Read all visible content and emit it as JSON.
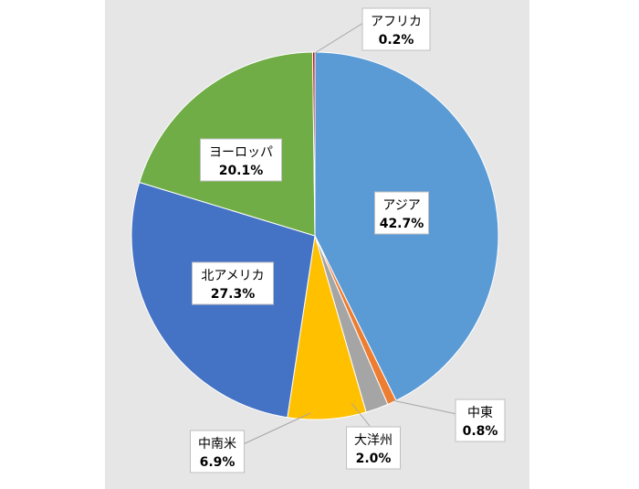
{
  "chart_data": {
    "type": "pie",
    "start_angle_deg": 0,
    "direction": "clockwise",
    "legend": "none",
    "categories": [
      "アジア",
      "中東",
      "大洋州",
      "中南米",
      "北アメリカ",
      "ヨーロッパ",
      "アフリカ"
    ],
    "values": [
      42.7,
      0.8,
      2.0,
      6.9,
      27.3,
      20.1,
      0.2
    ],
    "value_labels": [
      "42.7%",
      "0.8%",
      "2.0%",
      "6.9%",
      "27.3%",
      "20.1%",
      "0.2%"
    ],
    "colors": [
      "#5b9bd5",
      "#ed7d31",
      "#a5a5a5",
      "#ffc000",
      "#4472c4",
      "#70ad47",
      "#c00000"
    ],
    "background_color": "#e7e6e6"
  }
}
